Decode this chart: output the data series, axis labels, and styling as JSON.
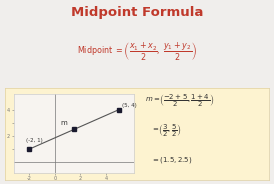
{
  "title": "Midpoint Formula",
  "title_color": "#c0392b",
  "bg_color": "#f0eeec",
  "box_bg_color": "#fdf3d0",
  "graph_bg_color": "#f7f4f0",
  "point1": [
    -2,
    1
  ],
  "point2": [
    5,
    4
  ],
  "midpoint": [
    1.5,
    2.5
  ],
  "point1_label": "(-2, 1)",
  "point2_label": "(5, 4)",
  "midpoint_label": "m",
  "xlim": [
    -3.2,
    6.2
  ],
  "ylim": [
    -0.8,
    5.2
  ],
  "formula_color": "#c0392b",
  "dot_color": "#1a1a2e",
  "line_color": "#555555",
  "axis_color": "#777777",
  "text_color": "#333333",
  "graph_border_color": "#cccccc"
}
